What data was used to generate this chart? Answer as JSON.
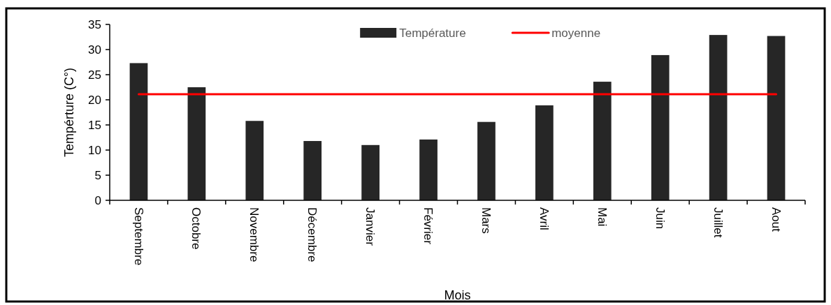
{
  "chart_data": {
    "type": "bar",
    "xlabel": "Mois",
    "ylabel": "Tempérture (C°)",
    "categories": [
      "Septembre",
      "Octobre",
      "Novembre",
      "Décembre",
      "Janvier",
      "Février",
      "Mars",
      "Avril",
      "Mai",
      "Juin",
      "Juillet",
      "Aout"
    ],
    "series": [
      {
        "name": "Température",
        "color": "#262626",
        "values": [
          27.3,
          22.5,
          15.8,
          11.8,
          11.0,
          12.1,
          15.6,
          18.9,
          23.6,
          28.9,
          32.9,
          32.7
        ]
      },
      {
        "name": "moyenne",
        "type": "line",
        "color": "#ff0000",
        "values": [
          21.1,
          21.1,
          21.1,
          21.1,
          21.1,
          21.1,
          21.1,
          21.1,
          21.1,
          21.1,
          21.1,
          21.1
        ]
      }
    ],
    "ylim": [
      0,
      35
    ],
    "yticks": [
      0,
      5,
      10,
      15,
      20,
      25,
      30,
      35
    ],
    "legend": "top",
    "grid": false
  }
}
